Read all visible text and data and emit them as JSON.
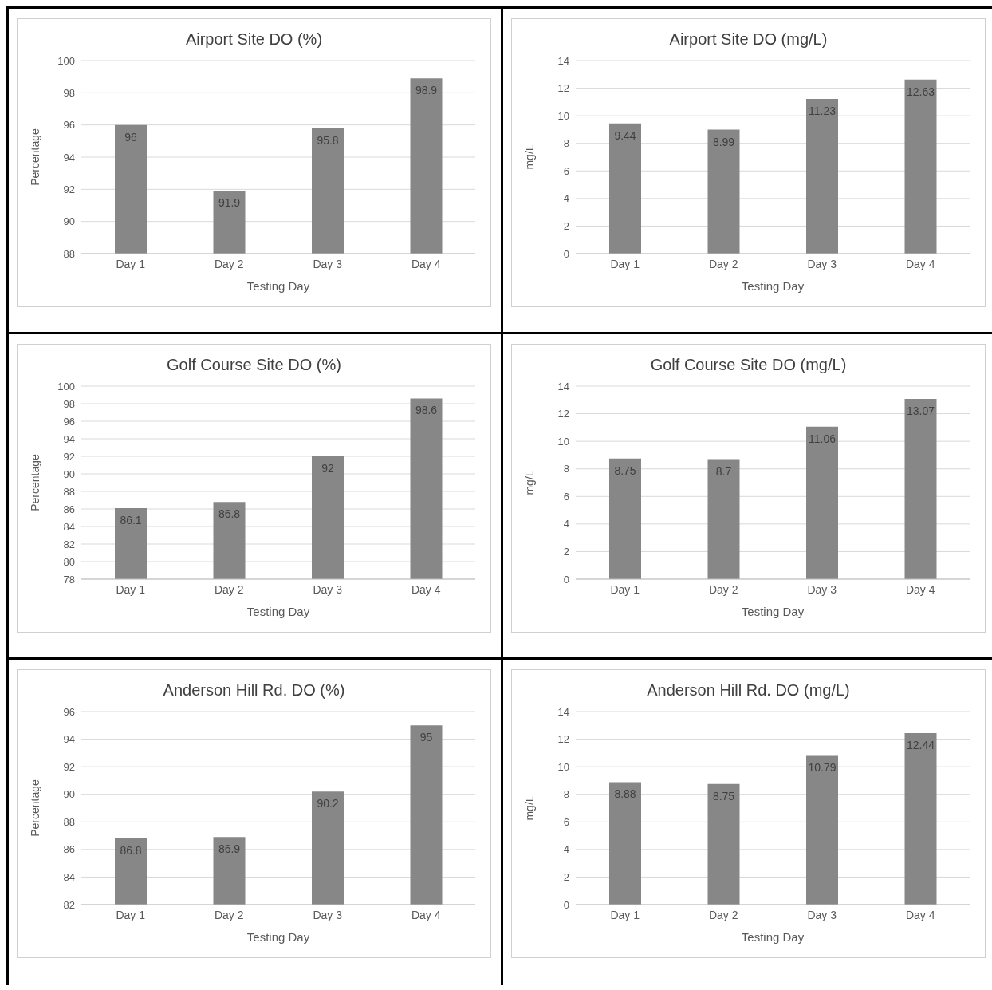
{
  "chart_data": [
    {
      "type": "bar",
      "title": "Airport Site DO (%)",
      "xlabel": "Testing Day",
      "ylabel": "Percentage",
      "categories": [
        "Day 1",
        "Day 2",
        "Day 3",
        "Day 4"
      ],
      "values": [
        96,
        91.9,
        95.8,
        98.9
      ],
      "color": "#878787",
      "ylim": [
        88,
        100
      ],
      "yticks": [
        88,
        90,
        92,
        94,
        96,
        98,
        100
      ],
      "grid": "y",
      "data_labels": true
    },
    {
      "type": "bar",
      "title": "Airport Site DO (mg/L)",
      "xlabel": "Testing Day",
      "ylabel": "mg/L",
      "categories": [
        "Day 1",
        "Day 2",
        "Day 3",
        "Day 4"
      ],
      "values": [
        9.44,
        8.99,
        11.23,
        12.63
      ],
      "color": "#878787",
      "ylim": [
        0,
        14
      ],
      "yticks": [
        0,
        2,
        4,
        6,
        8,
        10,
        12,
        14
      ],
      "grid": "y",
      "data_labels": true
    },
    {
      "type": "bar",
      "title": "Golf Course Site DO (%)",
      "xlabel": "Testing Day",
      "ylabel": "Percentage",
      "categories": [
        "Day 1",
        "Day 2",
        "Day 3",
        "Day 4"
      ],
      "values": [
        86.1,
        86.8,
        92,
        98.6
      ],
      "color": "#878787",
      "ylim": [
        78,
        100
      ],
      "yticks": [
        78,
        80,
        82,
        84,
        86,
        88,
        90,
        92,
        94,
        96,
        98,
        100
      ],
      "grid": "y",
      "data_labels": true
    },
    {
      "type": "bar",
      "title": "Golf Course Site DO (mg/L)",
      "xlabel": "Testing Day",
      "ylabel": "mg/L",
      "categories": [
        "Day 1",
        "Day 2",
        "Day 3",
        "Day 4"
      ],
      "values": [
        8.75,
        8.7,
        11.06,
        13.07
      ],
      "color": "#878787",
      "ylim": [
        0,
        14
      ],
      "yticks": [
        0,
        2,
        4,
        6,
        8,
        10,
        12,
        14
      ],
      "grid": "y",
      "data_labels": true
    },
    {
      "type": "bar",
      "title": "Anderson Hill Rd. DO (%)",
      "xlabel": "Testing Day",
      "ylabel": "Percentage",
      "categories": [
        "Day 1",
        "Day 2",
        "Day 3",
        "Day 4"
      ],
      "values": [
        86.8,
        86.9,
        90.2,
        95
      ],
      "color": "#878787",
      "ylim": [
        82,
        96
      ],
      "yticks": [
        82,
        84,
        86,
        88,
        90,
        92,
        94,
        96
      ],
      "grid": "y",
      "data_labels": true
    },
    {
      "type": "bar",
      "title": "Anderson Hill Rd. DO (mg/L)",
      "xlabel": "Testing Day",
      "ylabel": "mg/L",
      "categories": [
        "Day 1",
        "Day 2",
        "Day 3",
        "Day 4"
      ],
      "values": [
        8.88,
        8.75,
        10.79,
        12.44
      ],
      "color": "#878787",
      "ylim": [
        0,
        14
      ],
      "yticks": [
        0,
        2,
        4,
        6,
        8,
        10,
        12,
        14
      ],
      "grid": "y",
      "data_labels": true
    }
  ]
}
